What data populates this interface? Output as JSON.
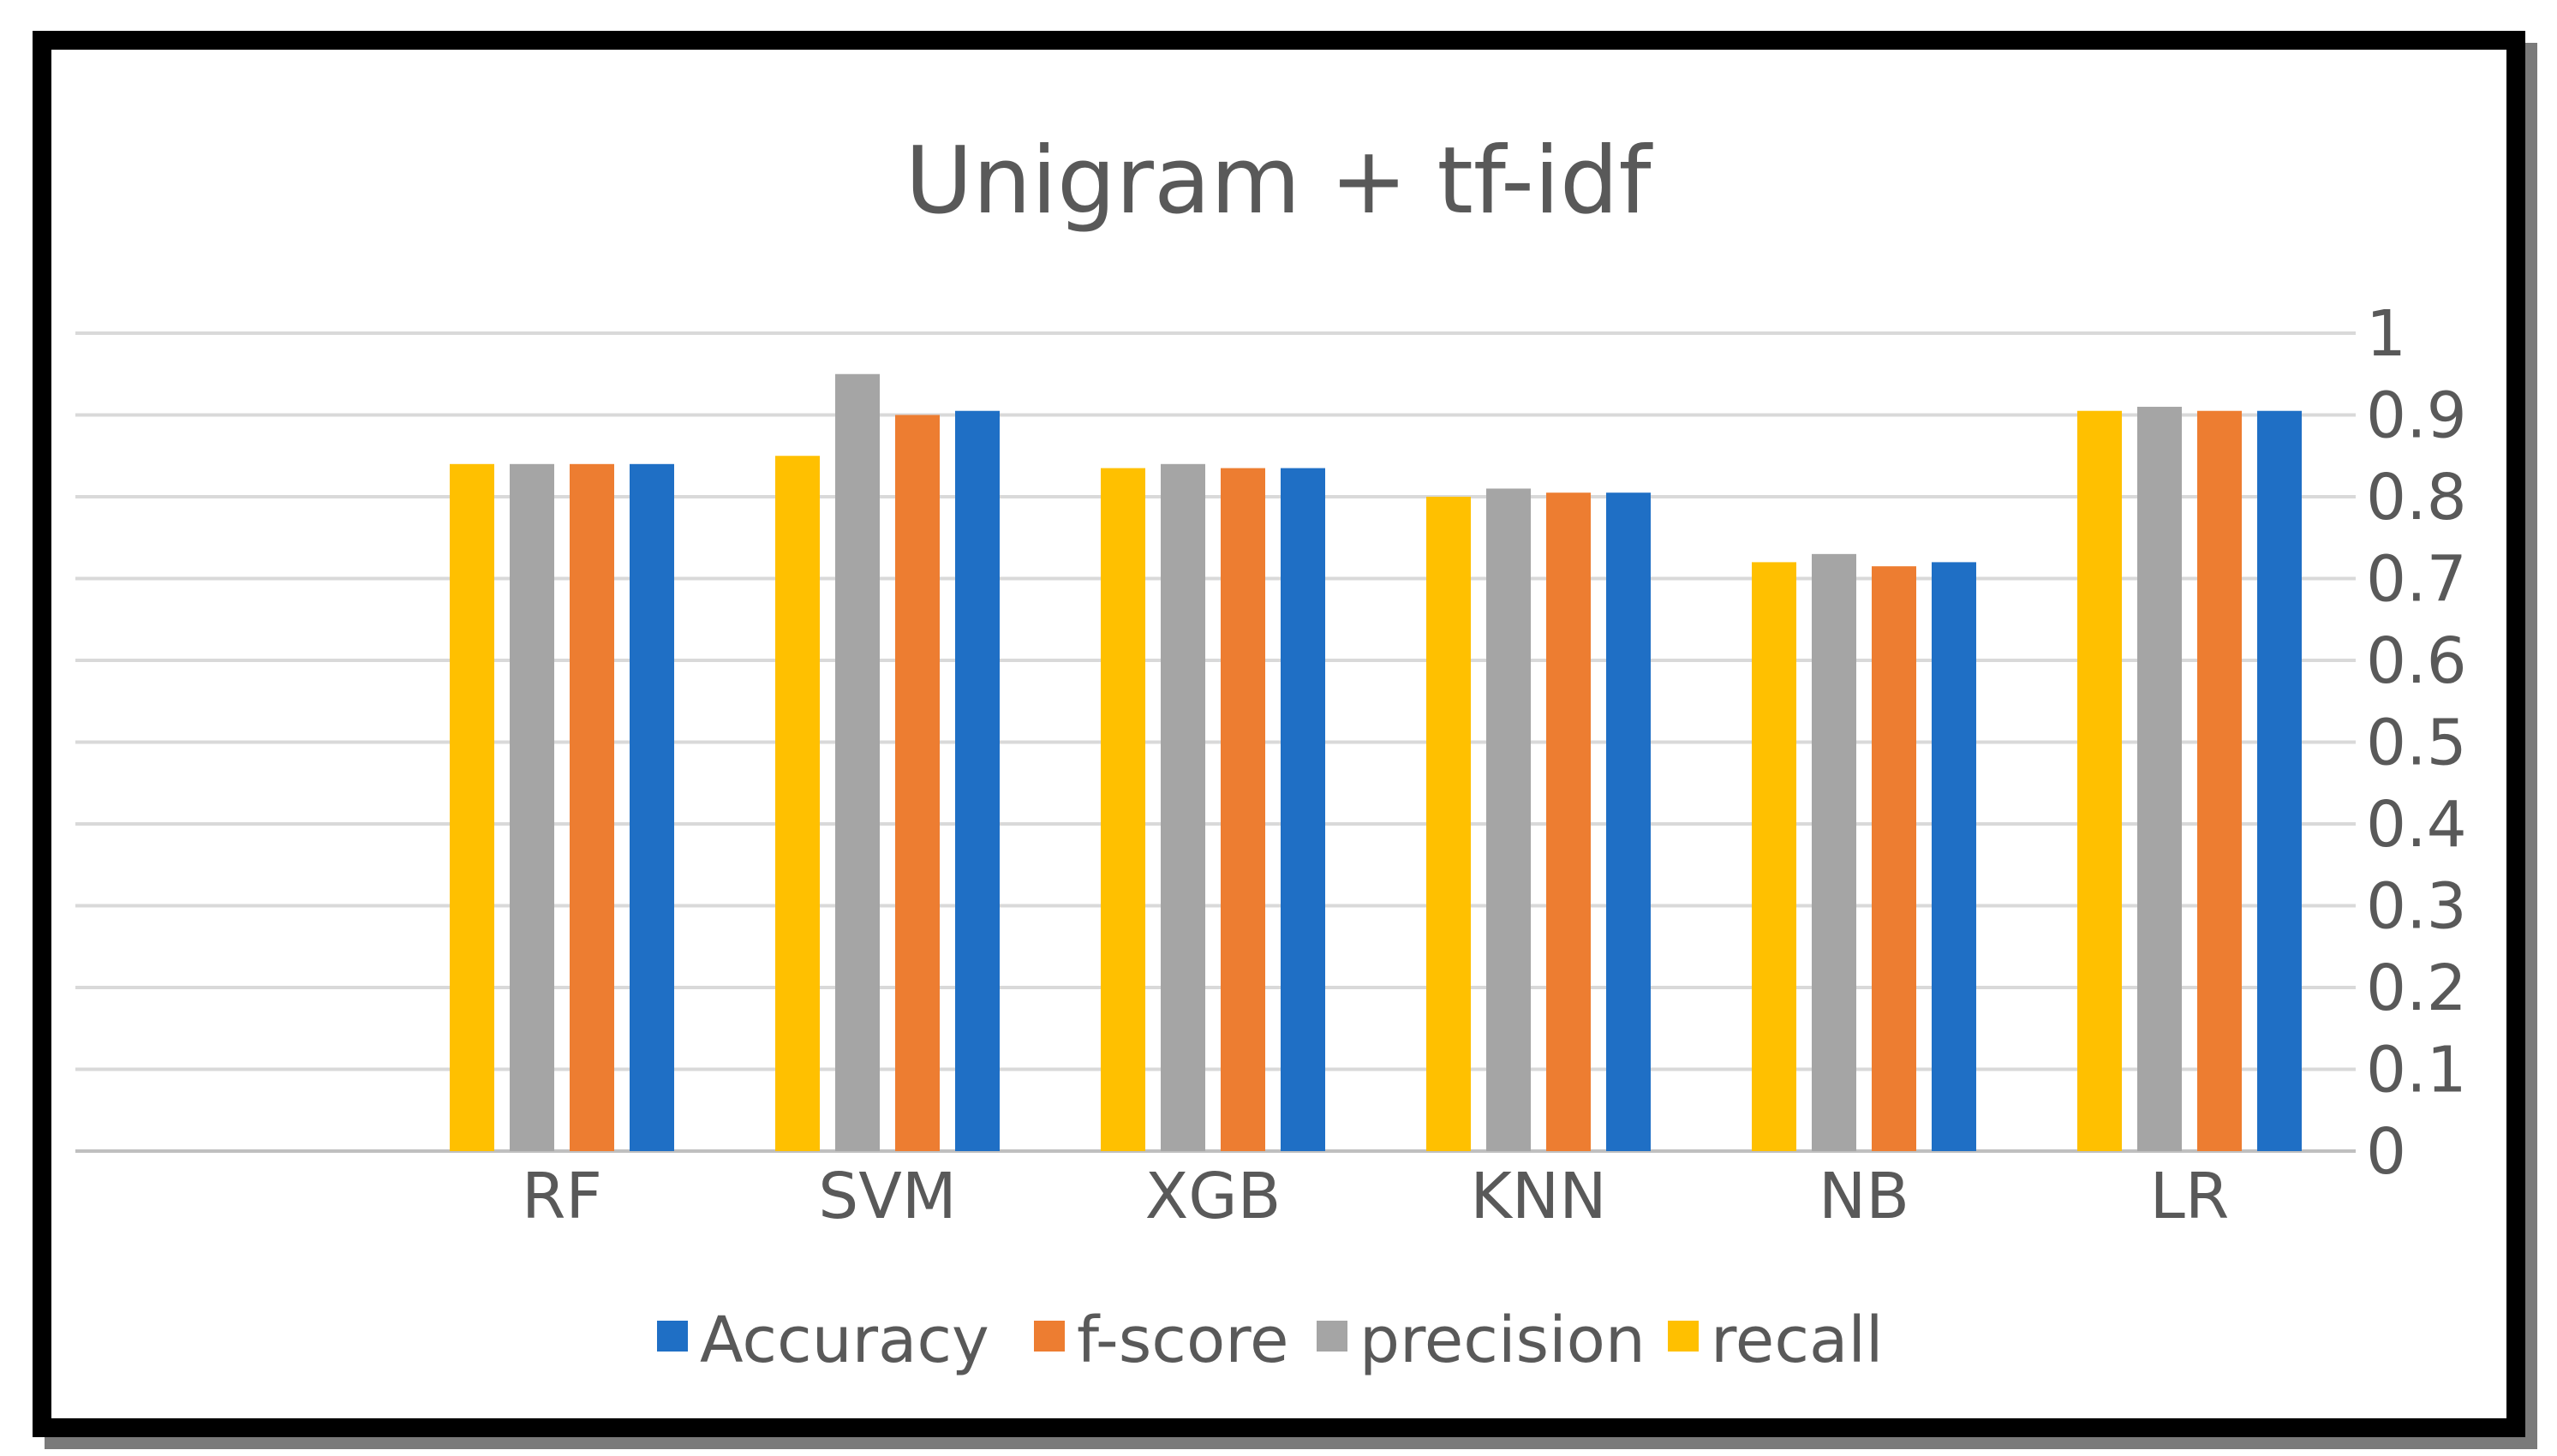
{
  "chart_data": {
    "type": "bar",
    "title": "Unigram + tf-idf",
    "xlabel": "",
    "ylabel": "",
    "categories": [
      "RF",
      "SVM",
      "XGB",
      "KNN",
      "NB",
      "LR"
    ],
    "series": [
      {
        "name": "recall",
        "color": "#FFC000",
        "values": [
          0.84,
          0.85,
          0.835,
          0.8,
          0.72,
          0.905
        ]
      },
      {
        "name": "precision",
        "color": "#A5A5A5",
        "values": [
          0.84,
          0.95,
          0.84,
          0.81,
          0.73,
          0.91
        ]
      },
      {
        "name": "f-score",
        "color": "#ED7D31",
        "values": [
          0.84,
          0.9,
          0.835,
          0.805,
          0.715,
          0.905
        ]
      },
      {
        "name": "Accuracy",
        "color": "#1F6FC5",
        "values": [
          0.84,
          0.905,
          0.835,
          0.805,
          0.72,
          0.905
        ]
      }
    ],
    "ylim": [
      0,
      1
    ],
    "yticks": [
      "0",
      "0.1",
      "0.2",
      "0.3",
      "0.4",
      "0.5",
      "0.6",
      "0.7",
      "0.8",
      "0.9",
      "1"
    ],
    "y_axis_side": "right",
    "grid": true,
    "gridline_color": "#D9D9D9",
    "legend": {
      "position": "bottom",
      "order": [
        "Accuracy",
        "f-score",
        "precision",
        "recall"
      ]
    }
  }
}
